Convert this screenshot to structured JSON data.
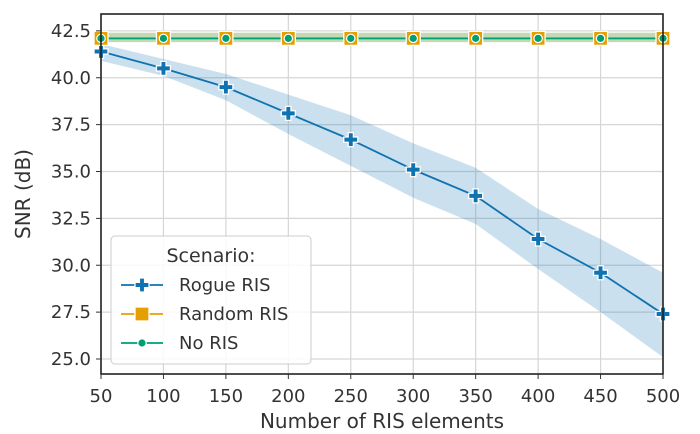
{
  "chart_data": {
    "type": "line",
    "xlabel": "Number of RIS elements",
    "ylabel": "SNR (dB)",
    "xlim": [
      50,
      500
    ],
    "ylim": [
      24.2,
      43.4
    ],
    "grid": true,
    "x": [
      50,
      100,
      150,
      200,
      250,
      300,
      350,
      400,
      450,
      500
    ],
    "x_ticks": [
      "50",
      "100",
      "150",
      "200",
      "250",
      "300",
      "350",
      "400",
      "450",
      "500"
    ],
    "y_ticks": [
      "25.0",
      "27.5",
      "30.0",
      "32.5",
      "35.0",
      "37.5",
      "40.0",
      "42.5"
    ],
    "y_tick_values": [
      25.0,
      27.5,
      30.0,
      32.5,
      35.0,
      37.5,
      40.0,
      42.5
    ],
    "legend": {
      "title": "Scenario:",
      "placement": "lower-left"
    },
    "series": [
      {
        "name": "Rogue RIS",
        "color": "#0f72b1",
        "marker": "plus",
        "values": [
          41.4,
          40.5,
          39.5,
          38.1,
          36.7,
          35.1,
          33.7,
          31.4,
          29.6,
          27.4
        ],
        "band_low": [
          40.9,
          40.1,
          38.8,
          37.0,
          35.3,
          33.6,
          32.2,
          29.8,
          27.5,
          25.1
        ],
        "band_high": [
          41.8,
          41.0,
          40.2,
          39.1,
          38.0,
          36.5,
          35.2,
          33.0,
          31.4,
          29.6
        ]
      },
      {
        "name": "Random RIS",
        "color": "#e69f00",
        "marker": "square",
        "values": [
          42.1,
          42.1,
          42.1,
          42.1,
          42.1,
          42.1,
          42.1,
          42.1,
          42.1,
          42.1
        ],
        "band_low": [
          41.9,
          41.9,
          41.9,
          41.9,
          41.9,
          41.9,
          41.9,
          41.9,
          41.9,
          41.9
        ],
        "band_high": [
          42.4,
          42.4,
          42.4,
          42.4,
          42.4,
          42.4,
          42.4,
          42.4,
          42.4,
          42.4
        ]
      },
      {
        "name": "No RIS",
        "color": "#009e73",
        "marker": "dot",
        "values": [
          42.1,
          42.1,
          42.1,
          42.1,
          42.1,
          42.1,
          42.1,
          42.1,
          42.1,
          42.1
        ],
        "band_low": [
          41.9,
          41.9,
          41.9,
          41.9,
          41.9,
          41.9,
          41.9,
          41.9,
          41.9,
          41.9
        ],
        "band_high": [
          42.4,
          42.4,
          42.4,
          42.4,
          42.4,
          42.4,
          42.4,
          42.4,
          42.4,
          42.4
        ]
      }
    ]
  }
}
